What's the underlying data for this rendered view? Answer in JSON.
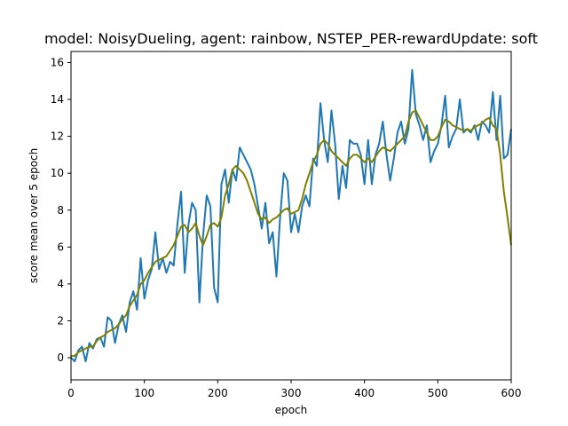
{
  "chart_data": {
    "type": "line",
    "title": "model: NoisyDueling, agent: rainbow, NSTEP_PER-rewardUpdate: soft",
    "xlabel": "epoch",
    "ylabel": "score mean over 5 epoch",
    "xlim": [
      0,
      600
    ],
    "ylim": [
      -1.2,
      16.6
    ],
    "xticks": [
      0,
      100,
      200,
      300,
      400,
      500,
      600
    ],
    "yticks": [
      0,
      2,
      4,
      6,
      8,
      10,
      12,
      14,
      16
    ],
    "grid": false,
    "legend": "none",
    "series": [
      {
        "color": "#1f77b4",
        "x": [
          0,
          5,
          10,
          15,
          20,
          25,
          30,
          35,
          40,
          45,
          50,
          55,
          60,
          65,
          70,
          75,
          80,
          85,
          90,
          95,
          100,
          105,
          110,
          115,
          120,
          125,
          130,
          135,
          140,
          145,
          150,
          155,
          160,
          165,
          170,
          175,
          180,
          185,
          190,
          195,
          200,
          205,
          210,
          215,
          220,
          225,
          230,
          235,
          240,
          245,
          250,
          255,
          260,
          265,
          270,
          275,
          280,
          285,
          290,
          295,
          300,
          305,
          310,
          315,
          320,
          325,
          330,
          335,
          340,
          345,
          350,
          355,
          360,
          365,
          370,
          375,
          380,
          385,
          390,
          395,
          400,
          405,
          410,
          415,
          420,
          425,
          430,
          435,
          440,
          445,
          450,
          455,
          460,
          465,
          470,
          475,
          480,
          485,
          490,
          495,
          500,
          505,
          510,
          515,
          520,
          525,
          530,
          535,
          540,
          545,
          550,
          555,
          560,
          565,
          570,
          575,
          580,
          585,
          590,
          595,
          600
        ],
        "y": [
          0.0,
          -0.2,
          0.4,
          0.6,
          -0.2,
          0.8,
          0.5,
          1.0,
          1.1,
          0.6,
          2.2,
          2.0,
          0.8,
          1.8,
          2.3,
          1.4,
          3.0,
          3.6,
          2.6,
          5.4,
          3.2,
          4.2,
          4.8,
          6.8,
          4.8,
          5.4,
          4.6,
          5.2,
          5.0,
          7.2,
          9.0,
          4.6,
          7.2,
          8.4,
          8.0,
          3.0,
          6.6,
          8.8,
          8.2,
          3.8,
          3.0,
          9.4,
          10.2,
          8.4,
          10.2,
          9.6,
          11.4,
          11.0,
          10.6,
          10.2,
          9.4,
          8.2,
          7.0,
          8.4,
          6.2,
          6.8,
          4.4,
          7.6,
          10.0,
          9.6,
          6.8,
          7.8,
          6.8,
          8.2,
          8.8,
          8.2,
          10.8,
          10.4,
          13.8,
          11.8,
          10.6,
          13.4,
          11.6,
          8.6,
          10.4,
          9.2,
          11.8,
          11.6,
          11.6,
          11.0,
          9.4,
          11.8,
          9.4,
          11.0,
          11.6,
          12.8,
          11.0,
          9.6,
          10.8,
          12.2,
          12.8,
          11.6,
          12.4,
          15.6,
          13.2,
          12.6,
          11.8,
          12.6,
          10.6,
          11.2,
          11.6,
          12.6,
          14.2,
          11.4,
          12.0,
          12.4,
          14.0,
          12.2,
          12.4,
          12.2,
          12.6,
          11.8,
          12.8,
          12.6,
          12.2,
          14.4,
          11.8,
          14.2,
          10.8,
          11.0,
          12.4
        ]
      },
      {
        "color": "#808000",
        "x": [
          0,
          5,
          10,
          15,
          20,
          25,
          30,
          35,
          40,
          45,
          50,
          55,
          60,
          65,
          70,
          75,
          80,
          85,
          90,
          95,
          100,
          105,
          110,
          115,
          120,
          125,
          130,
          135,
          140,
          145,
          150,
          155,
          160,
          165,
          170,
          175,
          180,
          185,
          190,
          195,
          200,
          205,
          210,
          215,
          220,
          225,
          230,
          235,
          240,
          245,
          250,
          255,
          260,
          265,
          270,
          275,
          280,
          285,
          290,
          295,
          300,
          305,
          310,
          315,
          320,
          325,
          330,
          335,
          340,
          345,
          350,
          355,
          360,
          365,
          370,
          375,
          380,
          385,
          390,
          395,
          400,
          405,
          410,
          415,
          420,
          425,
          430,
          435,
          440,
          445,
          450,
          455,
          460,
          465,
          470,
          475,
          480,
          485,
          490,
          495,
          500,
          505,
          510,
          515,
          520,
          525,
          530,
          535,
          540,
          545,
          550,
          555,
          560,
          565,
          570,
          575,
          580,
          585,
          590,
          595,
          600
        ],
        "y": [
          0.1,
          0.1,
          0.3,
          0.4,
          0.5,
          0.6,
          0.6,
          0.9,
          1.1,
          1.2,
          1.4,
          1.5,
          1.6,
          1.8,
          2.1,
          2.3,
          2.8,
          3.1,
          3.4,
          4.0,
          4.2,
          4.6,
          4.9,
          5.2,
          5.3,
          5.4,
          5.5,
          5.8,
          6.1,
          6.6,
          7.1,
          7.2,
          6.8,
          7.0,
          7.3,
          6.6,
          6.1,
          6.6,
          7.2,
          7.3,
          7.1,
          7.6,
          8.8,
          9.4,
          10.2,
          10.4,
          10.2,
          10.0,
          9.6,
          9.0,
          8.4,
          7.8,
          7.5,
          7.6,
          7.3,
          7.5,
          7.6,
          7.8,
          8.0,
          8.1,
          7.8,
          7.9,
          8.0,
          8.6,
          9.4,
          10.0,
          10.6,
          11.0,
          11.6,
          11.8,
          11.6,
          11.2,
          11.0,
          10.8,
          10.6,
          10.4,
          10.8,
          11.0,
          11.0,
          10.8,
          10.6,
          10.8,
          10.6,
          10.9,
          11.2,
          11.4,
          11.3,
          11.2,
          11.4,
          11.6,
          11.8,
          12.0,
          12.8,
          13.3,
          13.4,
          13.0,
          12.6,
          12.2,
          11.8,
          11.8,
          12.0,
          12.5,
          12.9,
          12.8,
          12.6,
          12.5,
          12.4,
          12.3,
          12.4,
          12.3,
          12.5,
          12.6,
          12.7,
          12.9,
          13.0,
          12.6,
          12.4,
          11.0,
          9.0,
          7.6,
          6.1
        ]
      }
    ]
  }
}
